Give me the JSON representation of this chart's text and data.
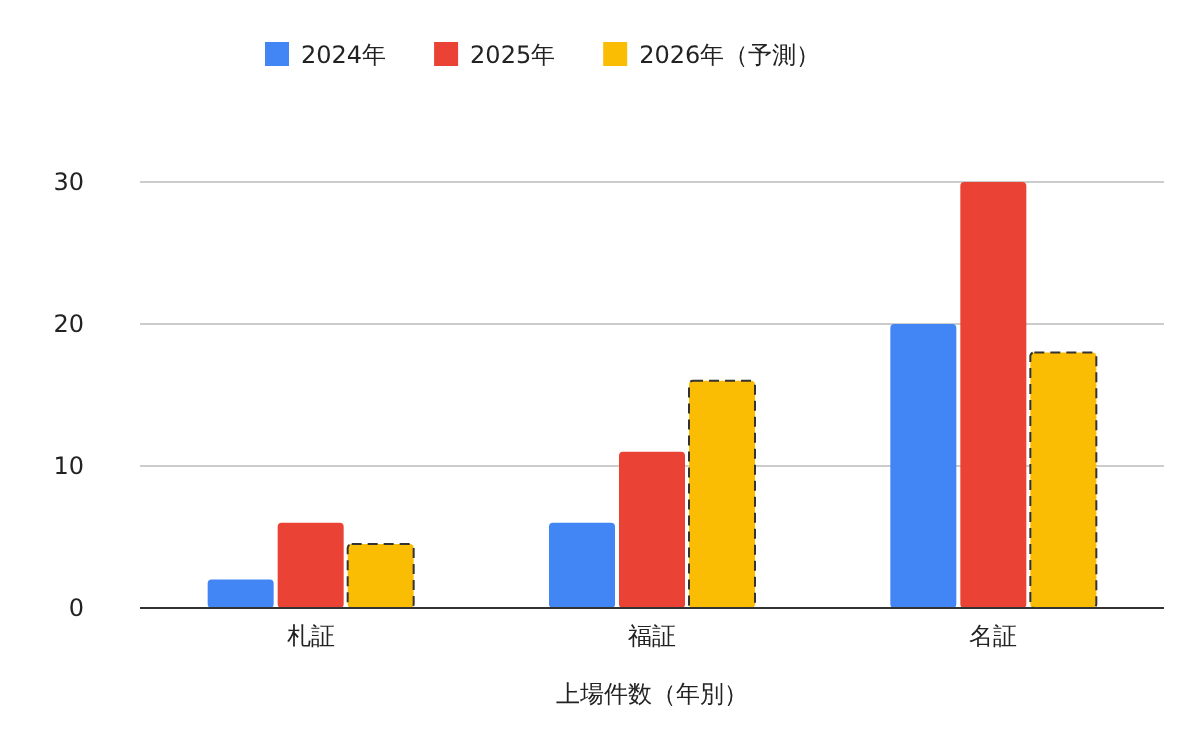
{
  "chart_data": {
    "type": "bar",
    "xlabel": "上場件数（年別）",
    "categories": [
      "札証",
      "福証",
      "名証"
    ],
    "series": [
      {
        "name": "2024年",
        "color": "#4285f4",
        "values": [
          2,
          6,
          20
        ]
      },
      {
        "name": "2025年",
        "color": "#ea4335",
        "values": [
          6,
          11,
          30
        ]
      },
      {
        "name": "2026年（予測）",
        "color": "#fbbc04",
        "values": [
          4.5,
          16,
          18
        ],
        "line_style": "dashed"
      }
    ],
    "ylim": [
      0,
      30
    ],
    "yticks": [
      0,
      10,
      20,
      30
    ],
    "grid": "y",
    "legend": "top"
  }
}
